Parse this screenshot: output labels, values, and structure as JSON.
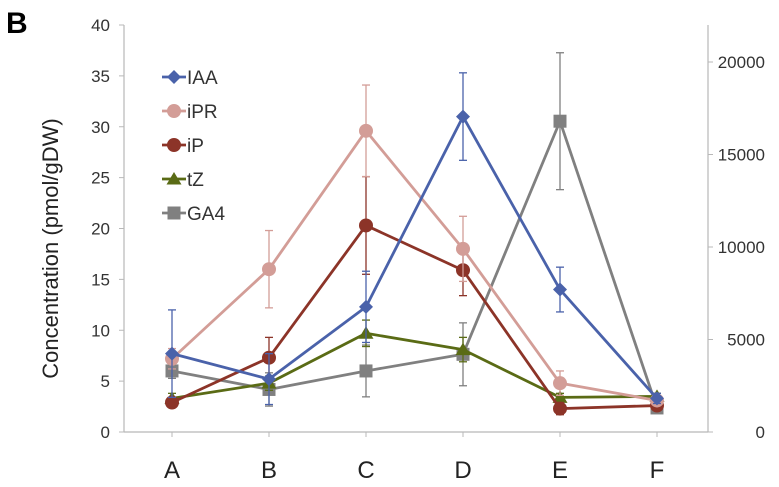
{
  "panel_label": "B",
  "chart_data": {
    "type": "line",
    "categories": [
      "A",
      "B",
      "C",
      "D",
      "E",
      "F"
    ],
    "ylabel": "Concentration (pmol/gDW)",
    "ylim": [
      0,
      40
    ],
    "y_ticks": [
      "0",
      "5",
      "10",
      "15",
      "20",
      "25",
      "30",
      "35",
      "40"
    ],
    "y2lim": [
      0,
      22000
    ],
    "y2_ticks": [
      "0",
      "5000",
      "10000",
      "15000",
      "20000"
    ],
    "legend_position": "top-left",
    "series": [
      {
        "name": "IAA",
        "axis": "left",
        "color": "#4a62aa",
        "marker": "diamond",
        "values": [
          7.7,
          5.2,
          12.3,
          31,
          14,
          3.3
        ],
        "errors": [
          4.3,
          2.5,
          3.5,
          4.3,
          2.2,
          0.5
        ]
      },
      {
        "name": "iPR",
        "axis": "left",
        "color": "#d39d97",
        "marker": "circle",
        "values": [
          7.2,
          16,
          29.6,
          18,
          4.8,
          3.1
        ],
        "errors": [
          1,
          3.8,
          4.5,
          3.2,
          1.2,
          0.3
        ]
      },
      {
        "name": "iP",
        "axis": "left",
        "color": "#8c3428",
        "marker": "circle",
        "values": [
          2.9,
          7.3,
          20.3,
          15.9,
          2.3,
          2.6
        ],
        "errors": [
          0.5,
          2,
          4.8,
          2.5,
          0.6,
          0.3
        ]
      },
      {
        "name": "tZ",
        "axis": "left",
        "color": "#5a6b15",
        "marker": "triangle",
        "values": [
          3.3,
          4.8,
          9.7,
          8.1,
          3.4,
          3.5
        ],
        "errors": [
          0.5,
          0.7,
          1.3,
          1.2,
          0.4,
          0.3
        ]
      },
      {
        "name": "GA4",
        "axis": "right",
        "color": "#808080",
        "marker": "square",
        "values": [
          3300,
          2300,
          3300,
          4200,
          16800,
          1300
        ],
        "errors": [
          400,
          900,
          1400,
          1700,
          3700,
          200
        ]
      }
    ]
  }
}
